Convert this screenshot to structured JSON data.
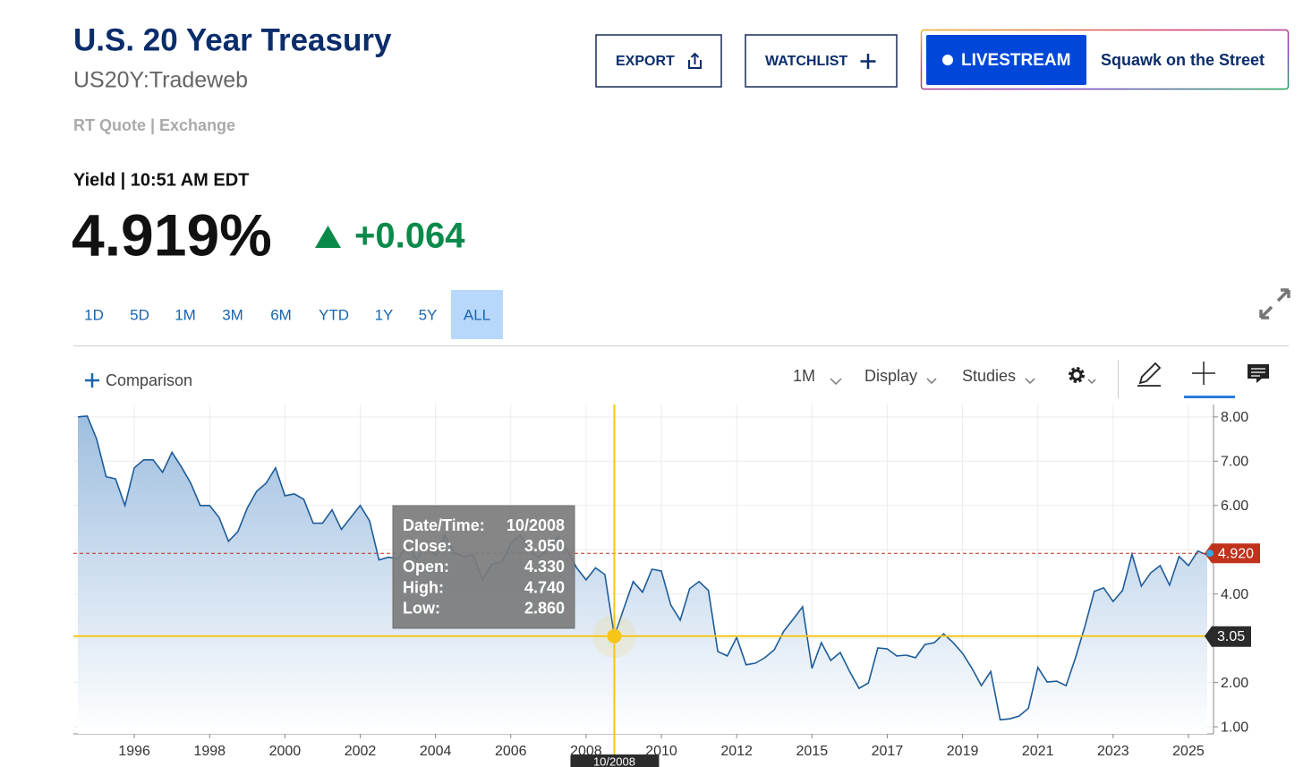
{
  "header": {
    "title": "U.S. 20 Year Treasury",
    "symbol": "US20Y:Tradeweb",
    "source": "RT Quote | Exchange"
  },
  "buttons": {
    "export": "EXPORT",
    "watchlist": "WATCHLIST",
    "livestream": "LIVESTREAM",
    "show": "Squawk on the Street"
  },
  "quote": {
    "label": "Yield | 10:51 AM EDT",
    "price": "4.919%",
    "change": "+0.064"
  },
  "ranges": {
    "items": [
      "1D",
      "5D",
      "1M",
      "3M",
      "6M",
      "YTD",
      "1Y",
      "5Y",
      "ALL"
    ],
    "selected": 8
  },
  "toolbar": {
    "comparison": "Comparison",
    "interval": "1M",
    "display": "Display",
    "studies": "Studies"
  },
  "chart_data": {
    "type": "area",
    "color": "#1d5c99",
    "x": [
      "07/1994",
      "10/1994",
      "01/1995",
      "04/1995",
      "07/1995",
      "10/1995",
      "01/1996",
      "04/1996",
      "07/1996",
      "10/1996",
      "01/1997",
      "04/1997",
      "07/1997",
      "10/1997",
      "01/1998",
      "04/1998",
      "07/1998",
      "10/1998",
      "01/1999",
      "04/1999",
      "07/1999",
      "10/1999",
      "01/2000",
      "04/2000",
      "07/2000",
      "10/2000",
      "01/2001",
      "04/2001",
      "07/2001",
      "10/2001",
      "01/2002",
      "04/2002",
      "07/2002",
      "10/2002",
      "01/2003",
      "04/2003",
      "07/2003",
      "10/2003",
      "01/2004",
      "04/2004",
      "07/2004",
      "10/2004",
      "01/2005",
      "04/2005",
      "07/2005",
      "10/2005",
      "01/2006",
      "04/2006",
      "07/2006",
      "10/2006",
      "01/2007",
      "04/2007",
      "07/2007",
      "10/2007",
      "01/2008",
      "04/2008",
      "07/2008",
      "10/2008",
      "01/2009",
      "04/2009",
      "07/2009",
      "10/2009",
      "01/2010",
      "04/2010",
      "07/2010",
      "10/2010",
      "01/2011",
      "04/2011",
      "07/2011",
      "10/2011",
      "01/2012",
      "06/2012",
      "10/2012",
      "03/2013",
      "07/2013",
      "12/2013",
      "04/2014",
      "09/2014",
      "01/2015",
      "04/2015",
      "07/2015",
      "10/2015",
      "01/2016",
      "04/2016",
      "07/2016",
      "10/2016",
      "01/2017",
      "04/2017",
      "07/2017",
      "10/2017",
      "01/2018",
      "04/2018",
      "07/2018",
      "10/2018",
      "01/2019",
      "04/2019",
      "07/2019",
      "10/2019",
      "01/2020",
      "04/2020",
      "07/2020",
      "10/2020",
      "01/2021",
      "04/2021",
      "07/2021",
      "10/2021",
      "01/2022",
      "04/2022",
      "07/2022",
      "10/2022",
      "01/2023",
      "04/2023",
      "07/2023",
      "10/2023",
      "01/2024",
      "04/2024",
      "07/2024",
      "10/2024",
      "01/2025",
      "04/2025",
      "07/2025"
    ],
    "values": [
      8.0,
      8.02,
      7.5,
      6.65,
      6.6,
      6.0,
      6.85,
      7.03,
      7.03,
      6.75,
      7.2,
      6.87,
      6.5,
      6.0,
      6.0,
      5.73,
      5.19,
      5.41,
      5.94,
      6.32,
      6.5,
      6.85,
      6.22,
      6.26,
      6.14,
      5.6,
      5.6,
      5.9,
      5.46,
      5.73,
      6.0,
      5.65,
      4.77,
      4.83,
      4.79,
      5.09,
      4.79,
      5.09,
      4.88,
      5.33,
      4.93,
      4.85,
      4.88,
      4.32,
      4.68,
      4.72,
      5.13,
      5.33,
      4.99,
      4.83,
      5.05,
      5.29,
      4.99,
      4.59,
      4.32,
      4.59,
      4.44,
      3.05,
      3.67,
      4.28,
      4.04,
      4.56,
      4.52,
      3.75,
      3.41,
      4.12,
      4.28,
      4.08,
      2.7,
      2.6,
      3.02,
      2.4,
      2.44,
      2.56,
      2.74,
      3.16,
      3.43,
      3.71,
      2.32,
      2.9,
      2.5,
      2.68,
      2.25,
      1.87,
      1.99,
      2.78,
      2.76,
      2.6,
      2.62,
      2.56,
      2.86,
      2.9,
      3.1,
      2.9,
      2.66,
      2.32,
      1.93,
      2.25,
      1.16,
      1.18,
      1.24,
      1.42,
      2.34,
      2.01,
      2.03,
      1.93,
      2.56,
      3.27,
      4.06,
      4.14,
      3.83,
      4.08,
      4.9,
      4.18,
      4.48,
      4.64,
      4.2,
      4.85,
      4.64,
      4.97,
      4.88
    ],
    "ylim": [
      0.84,
      8.28
    ],
    "yticks": [
      {
        "value": 1,
        "label": "1.00"
      },
      {
        "value": 2,
        "label": "2.00"
      },
      {
        "value": 3,
        "label": "3.00"
      },
      {
        "value": 4,
        "label": "4.00"
      },
      {
        "value": 5,
        "label": "5.00"
      },
      {
        "value": 6,
        "label": "6.00"
      },
      {
        "value": 7,
        "label": "7.00"
      },
      {
        "value": 8,
        "label": "8.00"
      }
    ],
    "xticks": [
      {
        "value": "01/1996",
        "label": "1996"
      },
      {
        "value": "01/1998",
        "label": "1998"
      },
      {
        "value": "01/2000",
        "label": "2000"
      },
      {
        "value": "01/2002",
        "label": "2002"
      },
      {
        "value": "01/2004",
        "label": "2004"
      },
      {
        "value": "01/2006",
        "label": "2006"
      },
      {
        "value": "01/2008",
        "label": "2008"
      },
      {
        "value": "01/2010",
        "label": "2010"
      },
      {
        "value": "01/2012",
        "label": "2012"
      },
      {
        "value": "01/2015",
        "label": "2015"
      },
      {
        "value": "01/2017",
        "label": "2017"
      },
      {
        "value": "01/2019",
        "label": "2019"
      },
      {
        "value": "01/2021",
        "label": "2021"
      },
      {
        "value": "01/2023",
        "label": "2023"
      },
      {
        "value": "01/2025",
        "label": "2025"
      }
    ],
    "grid": true,
    "last": {
      "value": 4.92,
      "label": "4.920",
      "color": "#c0321c"
    },
    "crosshair": {
      "x": "10/2008",
      "value": 3.05,
      "label": "3.05",
      "color": "#f5c518"
    },
    "tooltip": {
      "date_label": "Date/Time:",
      "date": "10/2008",
      "rows": [
        {
          "label": "Close:",
          "value": "3.050"
        },
        {
          "label": "Open:",
          "value": "4.330"
        },
        {
          "label": "High:",
          "value": "4.740"
        },
        {
          "label": "Low:",
          "value": "2.860"
        }
      ]
    }
  }
}
